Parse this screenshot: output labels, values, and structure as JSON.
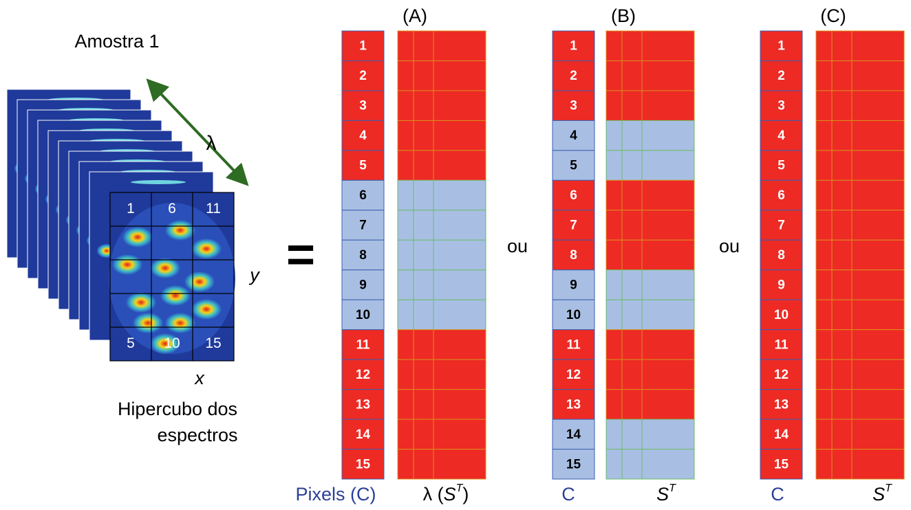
{
  "sample": {
    "title": "Amostra 1",
    "lambda": "λ",
    "y_label": "y",
    "x_label": "x",
    "caption": [
      "Hipercubo dos",
      "espectros"
    ],
    "grid_labels": [
      "1",
      "6",
      "11",
      "5",
      "10",
      "15"
    ]
  },
  "equals": "=",
  "separators": [
    "ou",
    "ou"
  ],
  "panels": [
    {
      "title": "(A)",
      "pixels": [
        "1",
        "2",
        "3",
        "4",
        "5",
        "6",
        "7",
        "8",
        "9",
        "10",
        "11",
        "12",
        "13",
        "14",
        "15"
      ],
      "pixel_colors": [
        "#ee2a24",
        "#ee2a24",
        "#ee2a24",
        "#ee2a24",
        "#ee2a24",
        "#a8bfe3",
        "#a8bfe3",
        "#a8bfe3",
        "#a8bfe3",
        "#a8bfe3",
        "#ee2a24",
        "#ee2a24",
        "#ee2a24",
        "#ee2a24",
        "#ee2a24"
      ],
      "c_label": "Pixels (C)",
      "s_label": {
        "prefix": "λ (",
        "symbol": "S",
        "sup": "T",
        "suffix": ")"
      }
    },
    {
      "title": "(B)",
      "pixels": [
        "1",
        "2",
        "3",
        "4",
        "5",
        "6",
        "7",
        "8",
        "9",
        "10",
        "11",
        "12",
        "13",
        "14",
        "15"
      ],
      "pixel_colors": [
        "#ee2a24",
        "#ee2a24",
        "#ee2a24",
        "#a8bfe3",
        "#a8bfe3",
        "#ee2a24",
        "#ee2a24",
        "#ee2a24",
        "#a8bfe3",
        "#a8bfe3",
        "#ee2a24",
        "#ee2a24",
        "#ee2a24",
        "#a8bfe3",
        "#a8bfe3"
      ],
      "c_label": "C",
      "s_label": {
        "symbol": "S",
        "sup": "T"
      }
    },
    {
      "title": "(C)",
      "pixels": [
        "1",
        "2",
        "3",
        "4",
        "5",
        "6",
        "7",
        "8",
        "9",
        "10",
        "11",
        "12",
        "13",
        "14",
        "15"
      ],
      "pixel_colors": [
        "#ee2a24",
        "#ee2a24",
        "#ee2a24",
        "#ee2a24",
        "#ee2a24",
        "#ee2a24",
        "#ee2a24",
        "#ee2a24",
        "#ee2a24",
        "#ee2a24",
        "#ee2a24",
        "#ee2a24",
        "#ee2a24",
        "#ee2a24",
        "#ee2a24"
      ],
      "c_label": "C",
      "s_label": {
        "symbol": "S",
        "sup": "T"
      }
    }
  ]
}
